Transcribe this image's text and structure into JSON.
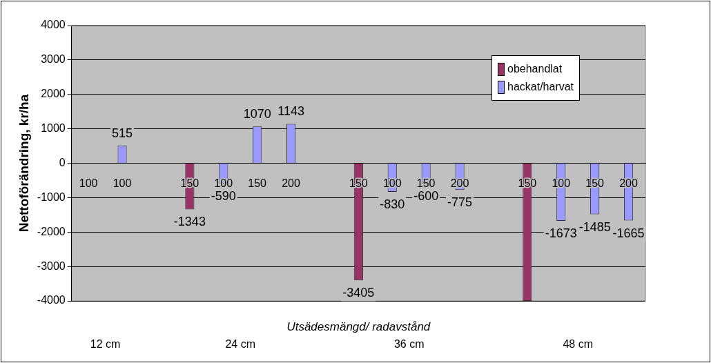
{
  "chart_data": {
    "type": "bar",
    "ylabel": "Nettoförändring, kr/ha",
    "xlabel": "Utsädesmängd/ radavstånd",
    "categories": [
      "100",
      "100",
      null,
      "150",
      "100",
      "150",
      "200",
      null,
      "150",
      "100",
      "150",
      "200",
      null,
      "150",
      "100",
      "150",
      "200"
    ],
    "series": [
      {
        "name": "obehandlat",
        "color": "#993366",
        "values": [
          null,
          null,
          null,
          -1343,
          null,
          null,
          null,
          null,
          -3405,
          null,
          null,
          null,
          null,
          -4000,
          null,
          null,
          null
        ],
        "value_labels": [
          null,
          null,
          null,
          "-1343",
          null,
          null,
          null,
          null,
          "-3405",
          null,
          null,
          null,
          null,
          null,
          null,
          null,
          null
        ]
      },
      {
        "name": "hackat/harvat",
        "color": "#9999ff",
        "values": [
          null,
          515,
          null,
          null,
          -590,
          1070,
          1143,
          null,
          null,
          -830,
          -600,
          -775,
          null,
          null,
          -1673,
          -1485,
          -1665
        ],
        "value_labels": [
          null,
          "515",
          null,
          null,
          "-590",
          "1070",
          "1143",
          null,
          null,
          "-830",
          "-600",
          "-775",
          null,
          null,
          "-1673",
          "-1485",
          "-1665"
        ]
      }
    ],
    "ylim": [
      -4000,
      4000
    ],
    "yticks": [
      -4000,
      -3000,
      -2000,
      -1000,
      0,
      1000,
      2000,
      3000,
      4000
    ],
    "grid": "y",
    "legend": "top right",
    "annotations": [
      "12 cm",
      "24 cm",
      "36 cm",
      "48 cm"
    ]
  }
}
